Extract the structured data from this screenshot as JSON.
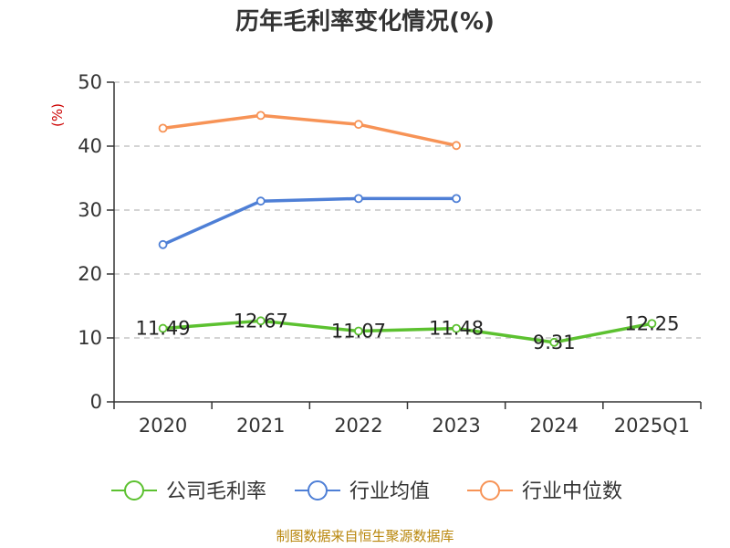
{
  "chart_data": {
    "type": "line",
    "title": "历年毛利率变化情况(%)",
    "ylabel": "(%)",
    "categories": [
      "2020",
      "2021",
      "2022",
      "2023",
      "2024",
      "2025Q1"
    ],
    "ylim": [
      0,
      50
    ],
    "yticks": [
      0,
      10,
      20,
      30,
      40,
      50
    ],
    "grid": true,
    "legend_position": "bottom",
    "series": [
      {
        "name": "公司毛利率",
        "color": "#5cc130",
        "values": [
          11.49,
          12.67,
          11.07,
          11.48,
          9.31,
          12.25
        ],
        "labels": [
          "11.49",
          "12.67",
          "11.07",
          "11.48",
          "9.31",
          "12.25"
        ]
      },
      {
        "name": "行业均值",
        "color": "#4e7fd6",
        "values": [
          24.6,
          31.4,
          31.8,
          31.8,
          null,
          null
        ]
      },
      {
        "name": "行业中位数",
        "color": "#f79356",
        "values": [
          42.8,
          44.8,
          43.4,
          40.1,
          null,
          null
        ]
      }
    ]
  },
  "source": "制图数据来自恒生聚源数据库"
}
